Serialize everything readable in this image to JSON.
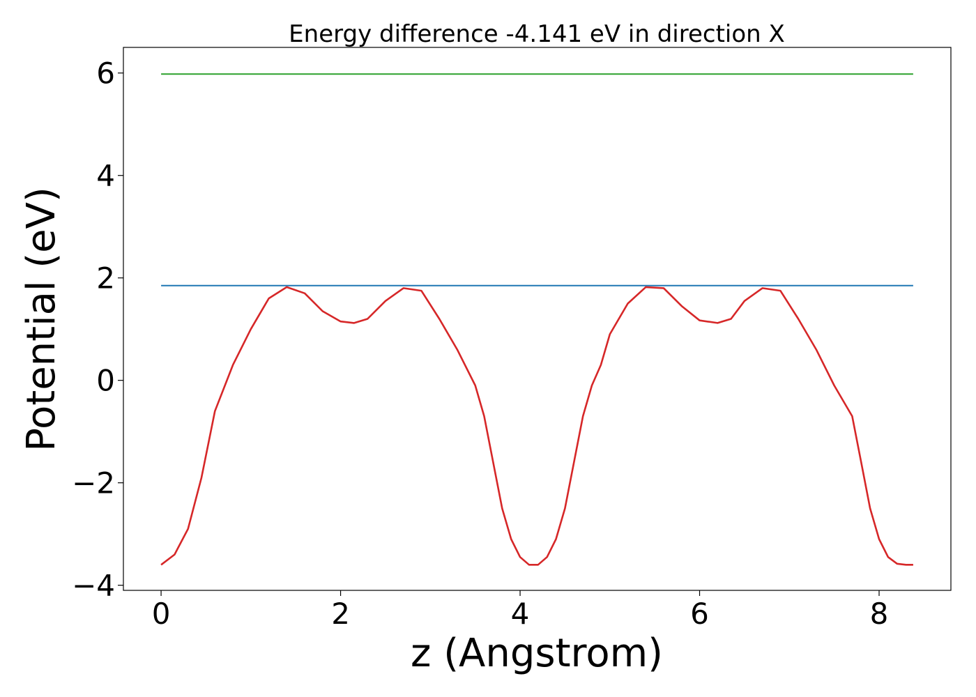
{
  "chart_data": {
    "type": "line",
    "title": "Energy difference -4.141 eV in direction X",
    "xlabel": "z (Angstrom)",
    "ylabel": "Potential (eV)",
    "xlim": [
      -0.42,
      8.8
    ],
    "ylim": [
      -4.1,
      6.5
    ],
    "xticks": [
      0,
      2,
      4,
      6,
      8
    ],
    "yticks": [
      -4,
      -2,
      0,
      2,
      4,
      6
    ],
    "yticks_labels": [
      "−4",
      "−2",
      "0",
      "2",
      "4",
      "6"
    ],
    "grid": false,
    "series": [
      {
        "color": "#2ca02c",
        "x": [
          0,
          8.38
        ],
        "y": [
          5.98,
          5.98
        ]
      },
      {
        "color": "#1f77b4",
        "x": [
          0,
          8.38
        ],
        "y": [
          1.85,
          1.85
        ]
      },
      {
        "color": "#d62728",
        "x": [
          0,
          0.15,
          0.3,
          0.45,
          0.6,
          0.8,
          1.0,
          1.2,
          1.4,
          1.6,
          1.8,
          2.0,
          2.15,
          2.3,
          2.5,
          2.7,
          2.9,
          3.1,
          3.3,
          3.5,
          3.6,
          3.7,
          3.8,
          3.9,
          4.0,
          4.1,
          4.2,
          4.3,
          4.4,
          4.5,
          4.6,
          4.7,
          4.8,
          4.9,
          5.0,
          5.2,
          5.4,
          5.6,
          5.8,
          6.0,
          6.2,
          6.35,
          6.5,
          6.7,
          6.9,
          7.1,
          7.3,
          7.5,
          7.7,
          7.8,
          7.9,
          8.0,
          8.1,
          8.2,
          8.3,
          8.38
        ],
        "y": [
          -3.6,
          -3.4,
          -2.9,
          -1.9,
          -0.6,
          0.3,
          1.0,
          1.6,
          1.82,
          1.7,
          1.35,
          1.15,
          1.12,
          1.2,
          1.55,
          1.8,
          1.75,
          1.2,
          0.6,
          -0.1,
          -0.7,
          -1.6,
          -2.5,
          -3.1,
          -3.45,
          -3.6,
          -3.6,
          -3.45,
          -3.1,
          -2.5,
          -1.6,
          -0.7,
          -0.1,
          0.3,
          0.9,
          1.5,
          1.82,
          1.8,
          1.45,
          1.17,
          1.12,
          1.2,
          1.55,
          1.8,
          1.75,
          1.2,
          0.6,
          -0.1,
          -0.7,
          -1.6,
          -2.5,
          -3.1,
          -3.45,
          -3.58,
          -3.6,
          -3.6
        ]
      }
    ]
  }
}
